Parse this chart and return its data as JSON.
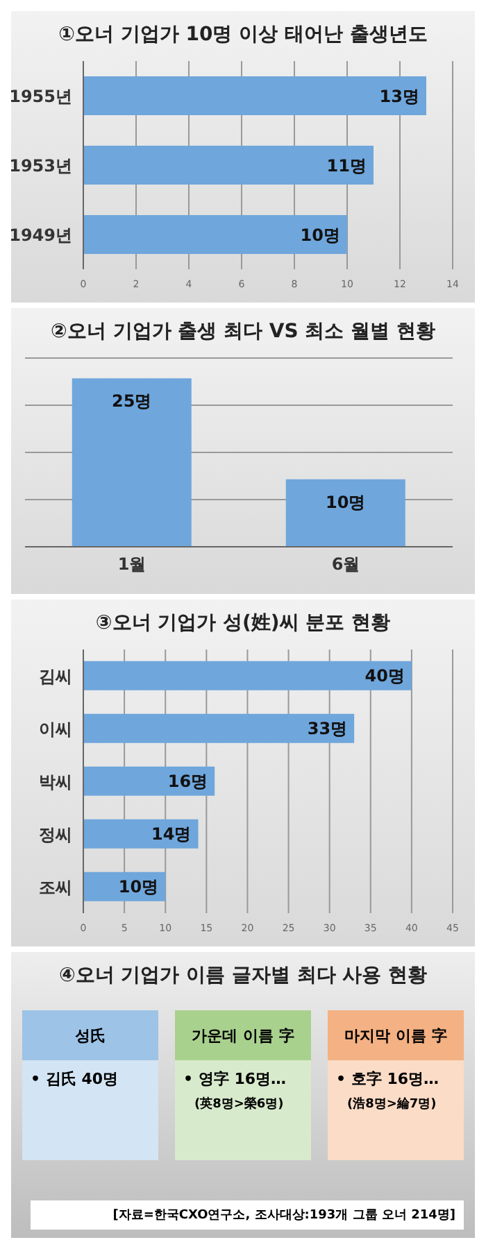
{
  "chart_data": [
    {
      "type": "bar",
      "title": "①오너 기업가 10명 이상 태어난 출생년도",
      "orientation": "horizontal",
      "categories": [
        "1955년",
        "1953년",
        "1949년"
      ],
      "values": [
        13,
        11,
        10
      ],
      "value_labels": [
        "13명",
        "11명",
        "10명"
      ],
      "color": "#6fa6dc",
      "xlim": [
        0,
        14
      ],
      "xticks": [
        0,
        2,
        4,
        6,
        8,
        10,
        12,
        14
      ],
      "grid": "x"
    },
    {
      "type": "bar",
      "title": "②오너 기업가 출생 최다 VS 최소 월별 현황",
      "categories": [
        "1월",
        "6월"
      ],
      "values": [
        25,
        10
      ],
      "value_labels": [
        "25명",
        "10명"
      ],
      "color": "#6fa6dc",
      "grid": "y",
      "tick_labels": "x"
    },
    {
      "type": "bar",
      "title": "③오너 기업가 성(姓)씨 분포 현황",
      "orientation": "horizontal",
      "categories": [
        "김씨",
        "이씨",
        "박씨",
        "정씨",
        "조씨"
      ],
      "values": [
        40,
        33,
        16,
        14,
        10
      ],
      "value_labels": [
        "40명",
        "33명",
        "16명",
        "14명",
        "10명"
      ],
      "color": "#6fa6dc",
      "xlim": [
        0,
        45
      ],
      "xticks": [
        0,
        5,
        10,
        15,
        20,
        25,
        30,
        35,
        40,
        45
      ],
      "grid": "x"
    },
    {
      "type": "other",
      "title": "④오너 기업가 이름 글자별 최다 사용 현황",
      "colors": [
        "#9dc3e6",
        "#a9d18e",
        "#f4b183"
      ],
      "annotations": [
        "성氏",
        "• 김氏 40명",
        "가운데 이름 字",
        "• 영字 16명…",
        "(英8명>榮6명)",
        "마지막 이름 字",
        "• 호字 16명…",
        "(浩8명>綸7명)",
        "[자료=한국CXO연구소, 조사대상:193개 그룹 오너 214명]"
      ]
    }
  ]
}
